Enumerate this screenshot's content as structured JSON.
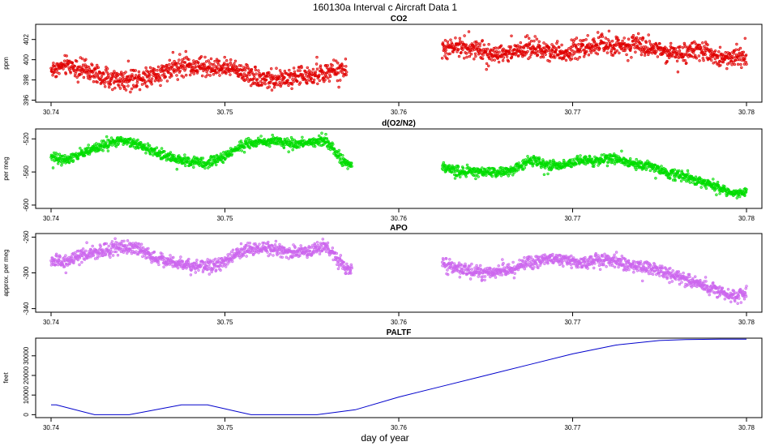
{
  "figure": {
    "title": "160130a   Interval c Aircraft Data 1",
    "xlabel": "day of year"
  },
  "colors": {
    "co2": "#e00000",
    "o2n2": "#00dd00",
    "apo": "#cc66ee",
    "paltf": "#0000cc",
    "axis": "#000000"
  },
  "chart_data": [
    {
      "type": "scatter",
      "id": "co2",
      "title": "CO2",
      "ylabel": "ppm",
      "xlim": [
        30.74,
        30.78
      ],
      "ylim": [
        395.8,
        403.5
      ],
      "xticks": [
        "30.74",
        "30.75",
        "30.76",
        "30.77",
        "30.78"
      ],
      "yticks": [
        "396",
        "398",
        "400",
        "402"
      ],
      "series": [
        {
          "name": "CO2",
          "x": [
            30.74,
            30.741,
            30.742,
            30.743,
            30.744,
            30.745,
            30.746,
            30.747,
            30.748,
            30.749,
            30.75,
            30.751,
            30.752,
            30.753,
            30.754,
            30.755,
            30.756,
            30.757,
            30.7625,
            30.7635,
            30.7645,
            30.7655,
            30.7665,
            30.7675,
            30.7685,
            30.7695,
            30.7705,
            30.7715,
            30.7725,
            30.7735,
            30.7745,
            30.7755,
            30.7765,
            30.7775,
            30.7785,
            30.7795,
            30.78
          ],
          "values": [
            399.0,
            399.5,
            398.9,
            398.3,
            398.0,
            398.2,
            398.6,
            399.2,
            399.4,
            399.1,
            399.3,
            398.8,
            398.2,
            398.0,
            398.3,
            398.4,
            398.8,
            399.0,
            400.9,
            401.3,
            401.0,
            400.6,
            400.7,
            401.2,
            401.0,
            400.7,
            401.2,
            401.5,
            401.2,
            401.7,
            401.3,
            400.8,
            400.5,
            400.9,
            400.2,
            400.3,
            400.4
          ]
        }
      ]
    },
    {
      "type": "scatter",
      "id": "o2n2",
      "title": "d(O2/N2)",
      "ylabel": "per meg",
      "xlim": [
        30.74,
        30.78
      ],
      "ylim": [
        -604,
        -508
      ],
      "xticks": [
        "30.74",
        "30.75",
        "30.76",
        "30.77",
        "30.78"
      ],
      "yticks": [
        "-600",
        "-560",
        "-520"
      ],
      "series": [
        {
          "name": "d(O2/N2)",
          "x": [
            30.74,
            30.741,
            30.742,
            30.743,
            30.744,
            30.745,
            30.746,
            30.747,
            30.748,
            30.749,
            30.75,
            30.751,
            30.752,
            30.753,
            30.754,
            30.755,
            30.7558,
            30.7563,
            30.7568,
            30.7573,
            30.7625,
            30.7635,
            30.7645,
            30.7655,
            30.7665,
            30.7675,
            30.7685,
            30.7695,
            30.7705,
            30.7715,
            30.7725,
            30.7735,
            30.7745,
            30.7755,
            30.7765,
            30.7775,
            30.7785,
            30.7795,
            30.78
          ],
          "values": [
            -543,
            -546,
            -535,
            -528,
            -522,
            -526,
            -537,
            -544,
            -547,
            -550,
            -541,
            -527,
            -524,
            -523,
            -526,
            -524,
            -520,
            -535,
            -548,
            -551,
            -555,
            -559,
            -561,
            -560,
            -559,
            -545,
            -551,
            -552,
            -546,
            -546,
            -543,
            -551,
            -553,
            -562,
            -565,
            -572,
            -580,
            -587,
            -582
          ]
        }
      ]
    },
    {
      "type": "scatter",
      "id": "apo",
      "title": "APO",
      "ylabel": "approx. per meg",
      "xlim": [
        30.74,
        30.78
      ],
      "ylim": [
        -344,
        -256
      ],
      "xticks": [
        "30.74",
        "30.75",
        "30.76",
        "30.77",
        "30.78"
      ],
      "yticks": [
        "-340",
        "-300",
        "-260"
      ],
      "series": [
        {
          "name": "APO",
          "x": [
            30.74,
            30.741,
            30.742,
            30.743,
            30.744,
            30.745,
            30.746,
            30.747,
            30.748,
            30.749,
            30.75,
            30.751,
            30.752,
            30.753,
            30.754,
            30.755,
            30.7558,
            30.7563,
            30.7568,
            30.7573,
            30.7625,
            30.7635,
            30.7645,
            30.7655,
            30.7665,
            30.7675,
            30.7685,
            30.7695,
            30.7705,
            30.7715,
            30.7725,
            30.7735,
            30.7745,
            30.7755,
            30.7765,
            30.7775,
            30.7785,
            30.7795,
            30.78
          ],
          "values": [
            -287,
            -287,
            -280,
            -275,
            -271,
            -273,
            -283,
            -288,
            -291,
            -293,
            -288,
            -275,
            -272,
            -274,
            -277,
            -275,
            -271,
            -281,
            -293,
            -297,
            -290,
            -296,
            -299,
            -299,
            -297,
            -288,
            -285,
            -285,
            -289,
            -285,
            -287,
            -292,
            -295,
            -302,
            -306,
            -313,
            -322,
            -327,
            -322
          ]
        }
      ]
    },
    {
      "type": "line",
      "id": "paltf",
      "title": "PALTF",
      "ylabel": "feet",
      "xlim": [
        30.74,
        30.78
      ],
      "ylim": [
        -1500,
        39000
      ],
      "xticks": [
        "30.74",
        "30.75",
        "30.76",
        "30.77",
        "30.78"
      ],
      "yticks": [
        "0",
        "10000",
        "20000",
        "30000"
      ],
      "series": [
        {
          "name": "PALTF",
          "x": [
            30.74,
            30.7403,
            30.7425,
            30.7445,
            30.7475,
            30.749,
            30.7515,
            30.7553,
            30.7575,
            30.76,
            30.7625,
            30.765,
            30.7675,
            30.77,
            30.7725,
            30.775,
            30.7765,
            30.7785,
            30.78
          ],
          "values": [
            5000,
            5000,
            0,
            0,
            5000,
            5000,
            0,
            0,
            2500,
            9000,
            14500,
            20000,
            25500,
            31000,
            35500,
            37800,
            38300,
            38500,
            38500
          ]
        }
      ]
    }
  ]
}
